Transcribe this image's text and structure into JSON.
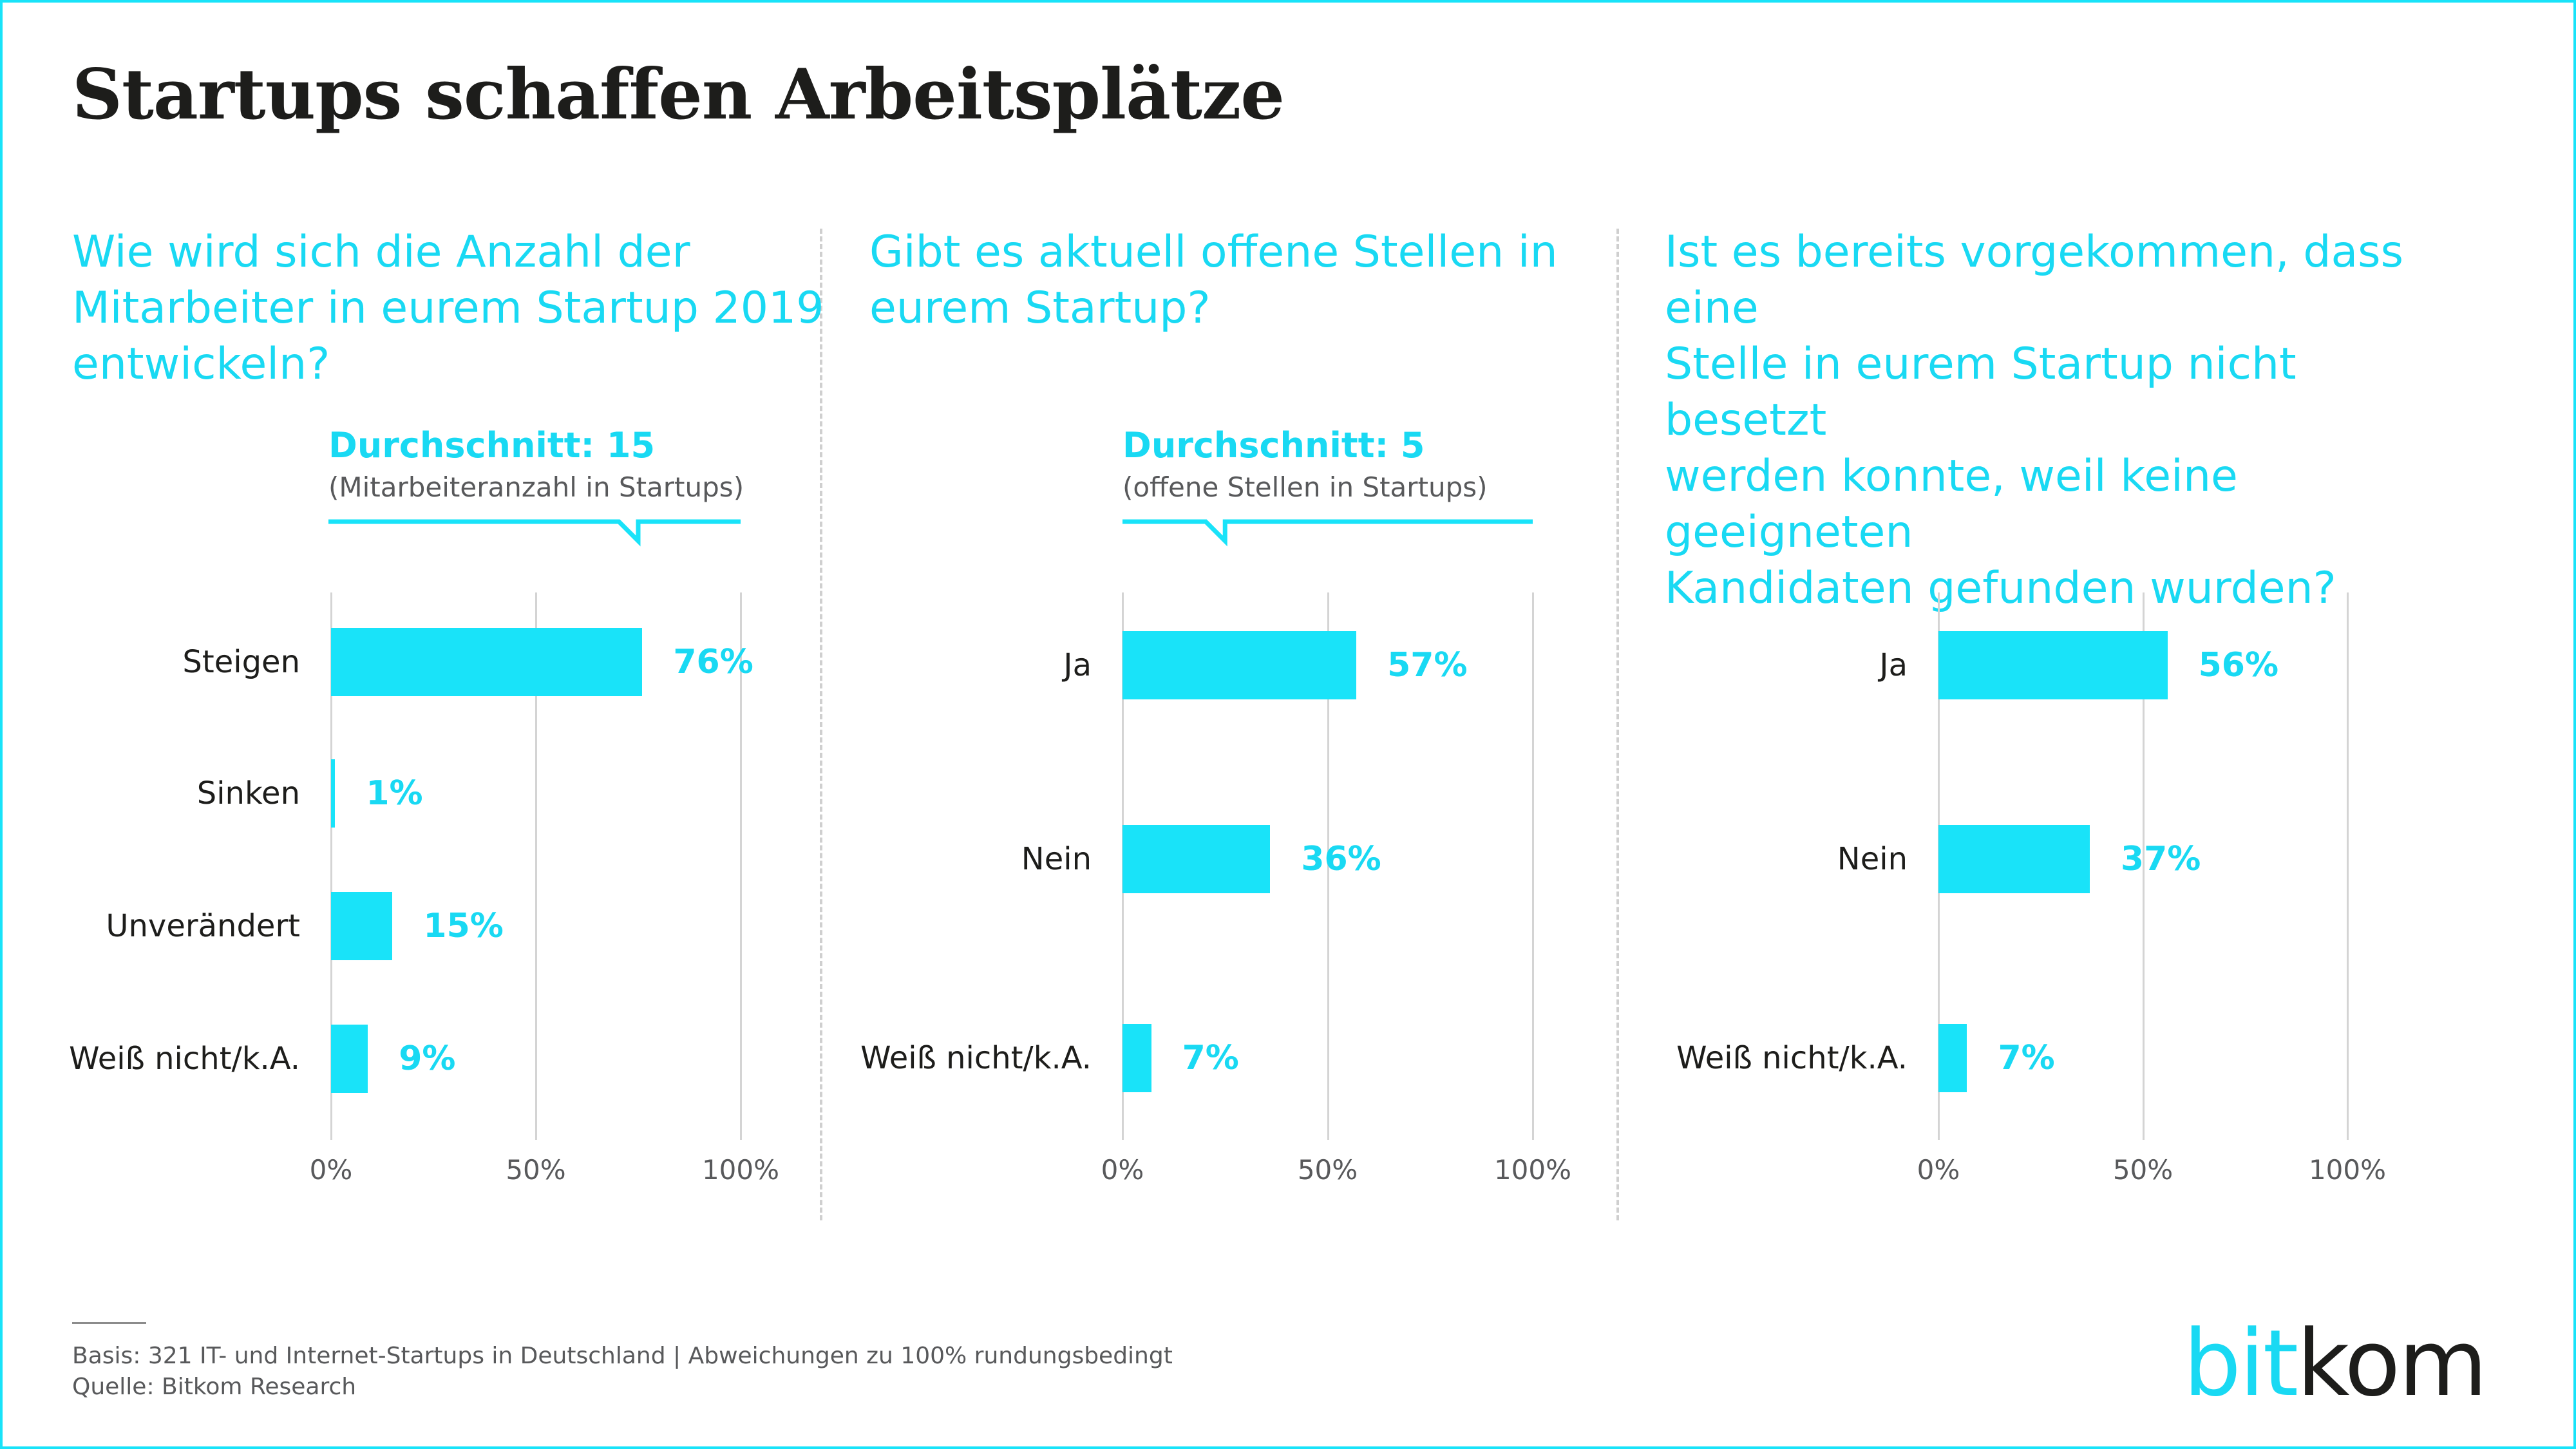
{
  "title": "Startups schaffen Arbeitsplätze",
  "colors": {
    "accent": "#19e3f9",
    "text": "#1d1d1b",
    "muted": "#58595b",
    "grid": "#d4d4d4"
  },
  "chart_data": [
    {
      "type": "bar",
      "orientation": "horizontal",
      "title": "Wie wird sich die Anzahl der Mitarbeiter in eurem Startup 2019 entwickeln?",
      "title_lines": [
        "Wie wird sich die Anzahl der",
        "Mitarbeiter in eurem Startup 2019",
        "entwickeln?"
      ],
      "average": {
        "label": "Durchschnitt: 15",
        "sub": "(Mitarbeiteranzahl in Startups)",
        "value": 15
      },
      "categories": [
        "Steigen",
        "Sinken",
        "Unverändert",
        "Weiß nicht/k.A."
      ],
      "values": [
        76,
        1,
        15,
        9
      ],
      "value_labels": [
        "76%",
        "1%",
        "15%",
        "9%"
      ],
      "unit": "%",
      "xlim": [
        0,
        100
      ],
      "xticks": [
        "0%",
        "50%",
        "100%"
      ],
      "grid": true
    },
    {
      "type": "bar",
      "orientation": "horizontal",
      "title": "Gibt es aktuell offene Stellen in eurem Startup?",
      "title_lines": [
        "Gibt es aktuell offene Stellen in",
        "eurem Startup?"
      ],
      "average": {
        "label": "Durchschnitt: 5",
        "sub": "(offene Stellen in Startups)",
        "value": 5
      },
      "categories": [
        "Ja",
        "Nein",
        "Weiß nicht/k.A."
      ],
      "values": [
        57,
        36,
        7
      ],
      "value_labels": [
        "57%",
        "36%",
        "7%"
      ],
      "unit": "%",
      "xlim": [
        0,
        100
      ],
      "xticks": [
        "0%",
        "50%",
        "100%"
      ],
      "grid": true
    },
    {
      "type": "bar",
      "orientation": "horizontal",
      "title": "Ist es bereits vorgekommen, dass eine Stelle in eurem Startup nicht besetzt werden konnte, weil keine geeigneten Kandidaten gefunden wurden?",
      "title_lines": [
        "Ist es bereits vorgekommen, dass eine",
        "Stelle in eurem Startup nicht besetzt",
        "werden konnte, weil keine geeigneten",
        "Kandidaten gefunden wurden?"
      ],
      "categories": [
        "Ja",
        "Nein",
        "Weiß nicht/k.A."
      ],
      "values": [
        56,
        37,
        7
      ],
      "value_labels": [
        "56%",
        "37%",
        "7%"
      ],
      "unit": "%",
      "xlim": [
        0,
        100
      ],
      "xticks": [
        "0%",
        "50%",
        "100%"
      ],
      "grid": true
    }
  ],
  "footer": {
    "basis": "Basis: 321 IT- und Internet-Startups in Deutschland |  Abweichungen zu 100% rundungsbedingt",
    "source": "Quelle: Bitkom Research"
  },
  "logo": {
    "part1": "bit",
    "part2": "kom"
  }
}
